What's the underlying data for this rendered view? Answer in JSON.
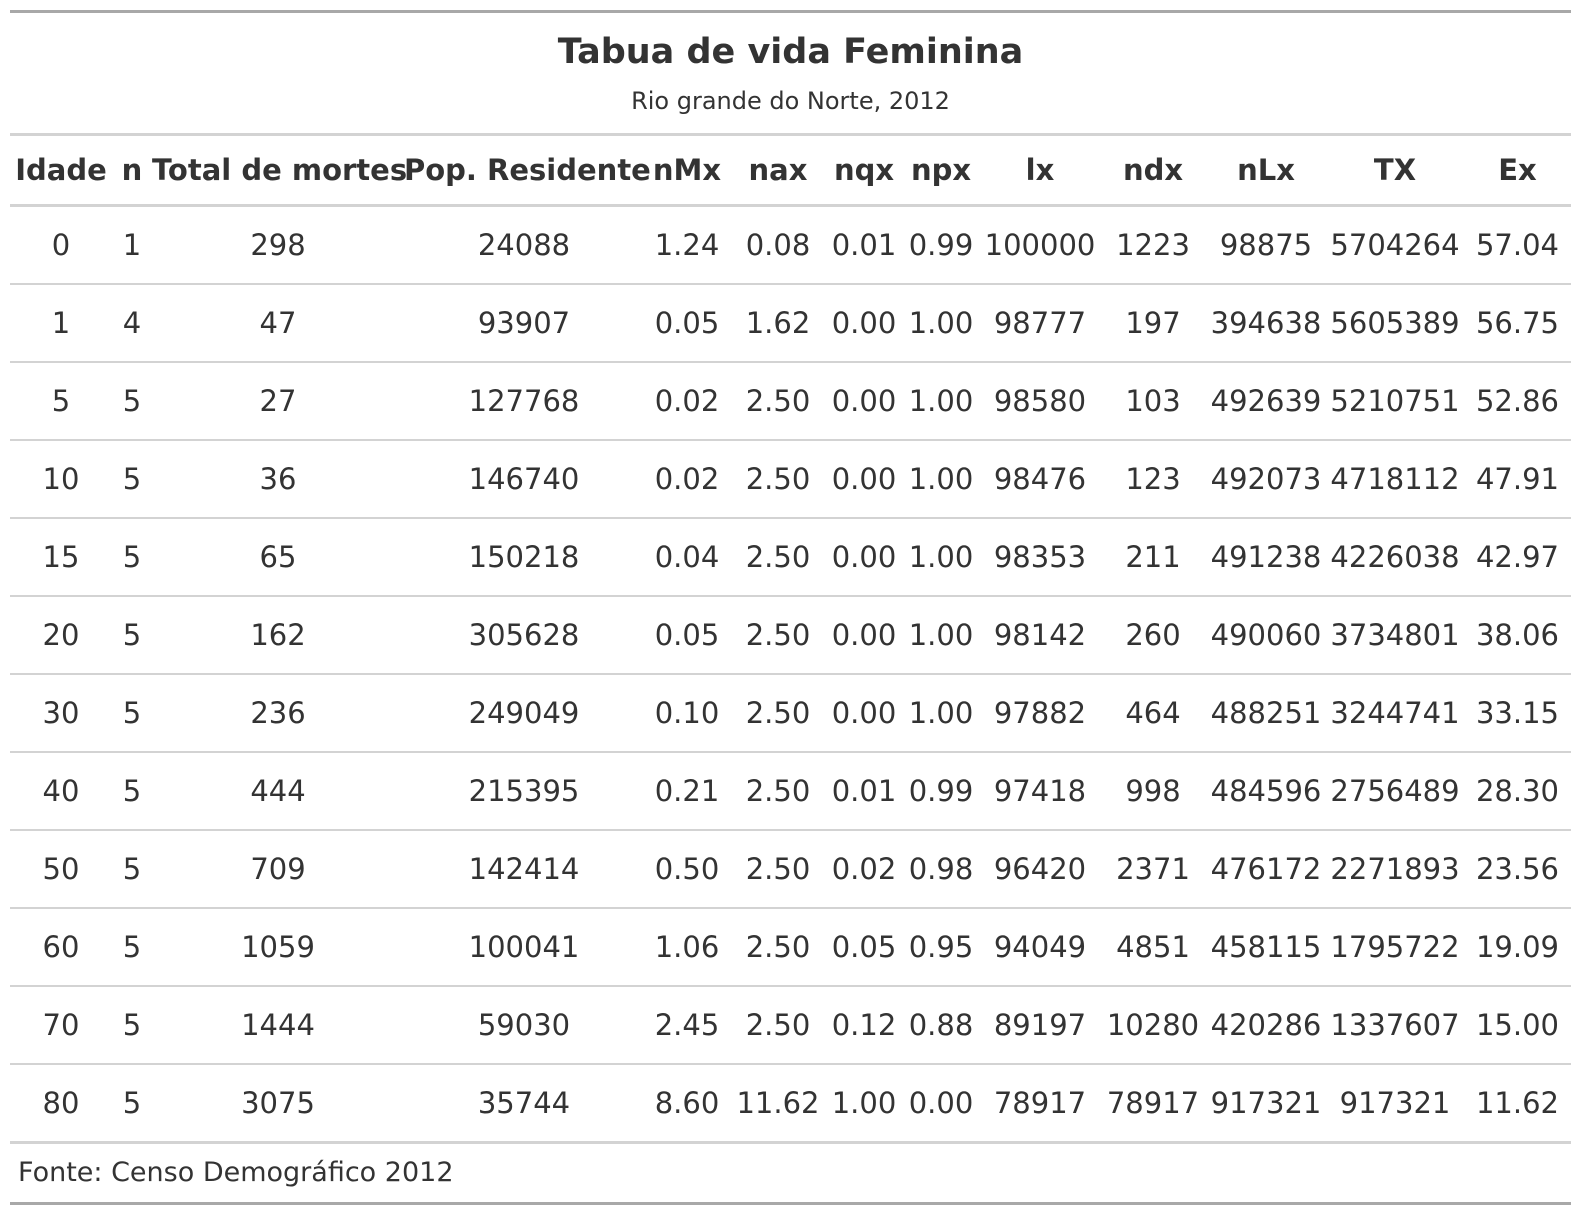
{
  "title": "Tabua de vida Feminina",
  "subtitle": "Rio grande do Norte, 2012",
  "columns": [
    "Idade",
    "n",
    "Total de mortes",
    "Pop. Residente",
    "nMx",
    "nax",
    "nqx",
    "npx",
    "lx",
    "ndx",
    "nLx",
    "TX",
    "Ex"
  ],
  "rows": [
    [
      "0",
      "1",
      "298",
      "24088",
      "1.24",
      "0.08",
      "0.01",
      "0.99",
      "100000",
      "1223",
      "98875",
      "5704264",
      "57.04"
    ],
    [
      "1",
      "4",
      "47",
      "93907",
      "0.05",
      "1.62",
      "0.00",
      "1.00",
      "98777",
      "197",
      "394638",
      "5605389",
      "56.75"
    ],
    [
      "5",
      "5",
      "27",
      "127768",
      "0.02",
      "2.50",
      "0.00",
      "1.00",
      "98580",
      "103",
      "492639",
      "5210751",
      "52.86"
    ],
    [
      "10",
      "5",
      "36",
      "146740",
      "0.02",
      "2.50",
      "0.00",
      "1.00",
      "98476",
      "123",
      "492073",
      "4718112",
      "47.91"
    ],
    [
      "15",
      "5",
      "65",
      "150218",
      "0.04",
      "2.50",
      "0.00",
      "1.00",
      "98353",
      "211",
      "491238",
      "4226038",
      "42.97"
    ],
    [
      "20",
      "5",
      "162",
      "305628",
      "0.05",
      "2.50",
      "0.00",
      "1.00",
      "98142",
      "260",
      "490060",
      "3734801",
      "38.06"
    ],
    [
      "30",
      "5",
      "236",
      "249049",
      "0.10",
      "2.50",
      "0.00",
      "1.00",
      "97882",
      "464",
      "488251",
      "3244741",
      "33.15"
    ],
    [
      "40",
      "5",
      "444",
      "215395",
      "0.21",
      "2.50",
      "0.01",
      "0.99",
      "97418",
      "998",
      "484596",
      "2756489",
      "28.30"
    ],
    [
      "50",
      "5",
      "709",
      "142414",
      "0.50",
      "2.50",
      "0.02",
      "0.98",
      "96420",
      "2371",
      "476172",
      "2271893",
      "23.56"
    ],
    [
      "60",
      "5",
      "1059",
      "100041",
      "1.06",
      "2.50",
      "0.05",
      "0.95",
      "94049",
      "4851",
      "458115",
      "1795722",
      "19.09"
    ],
    [
      "70",
      "5",
      "1444",
      "59030",
      "2.45",
      "2.50",
      "0.12",
      "0.88",
      "89197",
      "10280",
      "420286",
      "1337607",
      "15.00"
    ],
    [
      "80",
      "5",
      "3075",
      "35744",
      "8.60",
      "11.62",
      "1.00",
      "0.00",
      "78917",
      "78917",
      "917321",
      "917321",
      "11.62"
    ]
  ],
  "footer": "Fonte: Censo Demográfico 2012"
}
